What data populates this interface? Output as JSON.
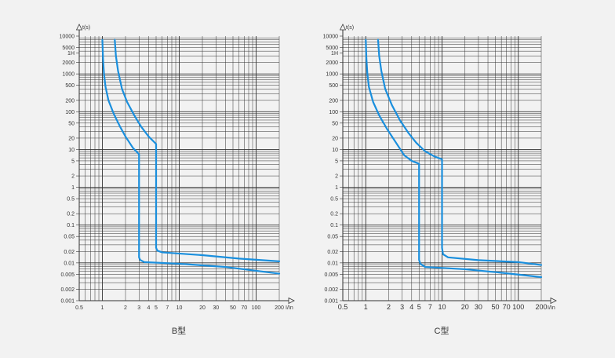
{
  "colors": {
    "background": "#f2f2f2",
    "curve": "#1a8fdd",
    "grid": "#333333"
  },
  "chart_data": [
    {
      "type": "line",
      "title": "B型",
      "xlabel": "I/In",
      "ylabel": "t(s)",
      "x_scale": "log",
      "y_scale": "log",
      "xlim": [
        0.5,
        200
      ],
      "ylim": [
        0.001,
        10000
      ],
      "grid": true,
      "x_ticks": [
        "0.5",
        "1",
        "2",
        "3",
        "4",
        "5",
        "7",
        "10",
        "20",
        "30",
        "50",
        "70",
        "100",
        "200"
      ],
      "y_ticks": [
        "10000",
        "5000",
        "1H",
        "2000",
        "1000",
        "500",
        "200",
        "100",
        "50",
        "20",
        "10",
        "5",
        "2",
        "1",
        "0.5",
        "0.2",
        "0.1",
        "0.05",
        "0.02",
        "0.01",
        "0.005",
        "0.002",
        "0.001"
      ],
      "series": [
        {
          "values": [
            [
              1.0,
              8000
            ],
            [
              1.02,
              2500
            ],
            [
              1.05,
              1000
            ],
            [
              1.1,
              450
            ],
            [
              1.2,
              200
            ],
            [
              1.4,
              90
            ],
            [
              1.7,
              40
            ],
            [
              2.0,
              22
            ],
            [
              2.5,
              11
            ],
            [
              3.0,
              7.5
            ],
            [
              3.0,
              0.014
            ],
            [
              3.1,
              0.012
            ],
            [
              3.5,
              0.0105
            ],
            [
              10,
              0.0095
            ],
            [
              40,
              0.0078
            ],
            [
              200,
              0.0052
            ]
          ]
        },
        {
          "values": [
            [
              1.45,
              8000
            ],
            [
              1.5,
              3000
            ],
            [
              1.6,
              1200
            ],
            [
              1.8,
              400
            ],
            [
              2.1,
              180
            ],
            [
              2.6,
              80
            ],
            [
              3.2,
              40
            ],
            [
              4.0,
              22
            ],
            [
              5.0,
              14
            ],
            [
              5.0,
              0.025
            ],
            [
              5.2,
              0.021
            ],
            [
              6.0,
              0.019
            ],
            [
              20,
              0.016
            ],
            [
              60,
              0.013
            ],
            [
              200,
              0.011
            ]
          ]
        }
      ]
    },
    {
      "type": "line",
      "title": "C型",
      "xlabel": "I/In",
      "ylabel": "t(s)",
      "x_scale": "log",
      "y_scale": "log",
      "xlim": [
        0.5,
        200
      ],
      "ylim": [
        0.001,
        10000
      ],
      "grid": true,
      "x_ticks": [
        "0.5",
        "1",
        "2",
        "3",
        "4",
        "5",
        "7",
        "10",
        "20",
        "30",
        "50",
        "70",
        "100",
        "200"
      ],
      "y_ticks": [
        "10000",
        "5000",
        "1H",
        "2000",
        "1000",
        "500",
        "200",
        "100",
        "50",
        "20",
        "10",
        "5",
        "2",
        "1",
        "0.5",
        "0.2",
        "0.1",
        "0.05",
        "0.02",
        "0.01",
        "0.005",
        "0.002",
        "0.001"
      ],
      "series": [
        {
          "values": [
            [
              1.0,
              8000
            ],
            [
              1.02,
              2500
            ],
            [
              1.05,
              1000
            ],
            [
              1.1,
              450
            ],
            [
              1.25,
              180
            ],
            [
              1.5,
              80
            ],
            [
              1.9,
              35
            ],
            [
              2.5,
              15
            ],
            [
              3.2,
              7
            ],
            [
              4.0,
              5
            ],
            [
              5.0,
              4.2
            ],
            [
              5.0,
              0.012
            ],
            [
              5.2,
              0.0095
            ],
            [
              6.0,
              0.0078
            ],
            [
              20,
              0.0068
            ],
            [
              60,
              0.0055
            ],
            [
              200,
              0.0042
            ]
          ]
        },
        {
          "values": [
            [
              1.45,
              8000
            ],
            [
              1.5,
              3000
            ],
            [
              1.6,
              1200
            ],
            [
              1.8,
              400
            ],
            [
              2.2,
              150
            ],
            [
              2.8,
              60
            ],
            [
              3.6,
              28
            ],
            [
              4.6,
              15
            ],
            [
              6.0,
              9
            ],
            [
              8.0,
              6.5
            ],
            [
              10.0,
              5.5
            ],
            [
              10.0,
              0.025
            ],
            [
              10.3,
              0.017
            ],
            [
              12,
              0.014
            ],
            [
              30,
              0.0118
            ],
            [
              100,
              0.0105
            ],
            [
              200,
              0.0088
            ]
          ]
        }
      ]
    }
  ]
}
